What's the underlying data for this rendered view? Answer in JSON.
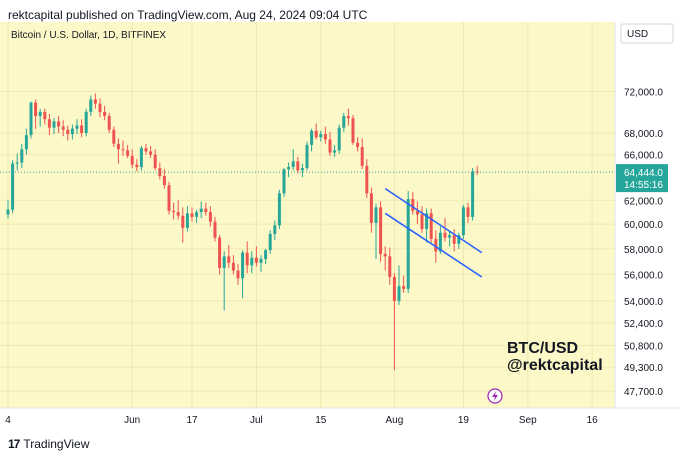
{
  "header": {
    "text": "rektcapital published on TradingView.com, Aug 24, 2024 09:04 UTC"
  },
  "footer": {
    "brand": "TradingView",
    "logo_text": "17"
  },
  "chart_data": {
    "type": "candlestick",
    "symbol_title": "Bitcoin / U.S. Dollar, 1D, BITFINEX",
    "currency_button": "USD",
    "watermark_line1": "BTC/USD",
    "watermark_line2": "@rektcapital",
    "background": "#fdf8c7",
    "up_color": "#26a69a",
    "down_color": "#ef5350",
    "channel_color": "#2962ff",
    "log_scale": true,
    "ylim": [
      47000,
      76000
    ],
    "y_ticks": [
      {
        "v": 72000,
        "label": "72,000.0"
      },
      {
        "v": 68000,
        "label": "68,000.0"
      },
      {
        "v": 66000,
        "label": "66,000.0"
      },
      {
        "v": 62000,
        "label": "62,000.0"
      },
      {
        "v": 60000,
        "label": "60,000.0"
      },
      {
        "v": 58000,
        "label": "58,000.0"
      },
      {
        "v": 56000,
        "label": "56,000.0"
      },
      {
        "v": 54000,
        "label": "54,000.0"
      },
      {
        "v": 52400,
        "label": "52,400.0"
      },
      {
        "v": 50800,
        "label": "50,800.0"
      },
      {
        "v": 49300,
        "label": "49,300.0"
      },
      {
        "v": 47700,
        "label": "47,700.0"
      }
    ],
    "x_ticks": [
      {
        "i": 0,
        "label": "4"
      },
      {
        "i": 27,
        "label": "Jun"
      },
      {
        "i": 40,
        "label": "17"
      },
      {
        "i": 54,
        "label": "Jul"
      },
      {
        "i": 68,
        "label": "15"
      },
      {
        "i": 84,
        "label": "Aug"
      },
      {
        "i": 99,
        "label": "19"
      },
      {
        "i": 113,
        "label": "Sep"
      },
      {
        "i": 127,
        "label": "16"
      }
    ],
    "last_price": {
      "value": 64444,
      "label": "64,444.0",
      "countdown": "14:55:16"
    },
    "channel_lines": [
      {
        "from": [
          82,
          63000
        ],
        "to": [
          103,
          57700
        ]
      },
      {
        "from": [
          82,
          60900
        ],
        "to": [
          103,
          55800
        ]
      }
    ],
    "candles": [
      {
        "o": 60800,
        "h": 62000,
        "l": 60500,
        "c": 61200
      },
      {
        "o": 61200,
        "h": 65500,
        "l": 60900,
        "c": 65200
      },
      {
        "o": 65200,
        "h": 66100,
        "l": 64600,
        "c": 65300
      },
      {
        "o": 65300,
        "h": 67000,
        "l": 64800,
        "c": 66500
      },
      {
        "o": 66500,
        "h": 68400,
        "l": 66000,
        "c": 67800
      },
      {
        "o": 67800,
        "h": 71000,
        "l": 67500,
        "c": 70900
      },
      {
        "o": 70900,
        "h": 71200,
        "l": 68400,
        "c": 69600
      },
      {
        "o": 69600,
        "h": 70300,
        "l": 68600,
        "c": 70000
      },
      {
        "o": 70000,
        "h": 70300,
        "l": 68800,
        "c": 69300
      },
      {
        "o": 69300,
        "h": 69800,
        "l": 67800,
        "c": 68500
      },
      {
        "o": 68500,
        "h": 69400,
        "l": 67900,
        "c": 69100
      },
      {
        "o": 69100,
        "h": 69600,
        "l": 68000,
        "c": 68600
      },
      {
        "o": 68600,
        "h": 69200,
        "l": 67700,
        "c": 68300
      },
      {
        "o": 68300,
        "h": 68700,
        "l": 67300,
        "c": 67900
      },
      {
        "o": 67900,
        "h": 68800,
        "l": 67400,
        "c": 68400
      },
      {
        "o": 68400,
        "h": 69300,
        "l": 67900,
        "c": 68700
      },
      {
        "o": 68700,
        "h": 69300,
        "l": 67600,
        "c": 68000
      },
      {
        "o": 68000,
        "h": 70300,
        "l": 67700,
        "c": 70000
      },
      {
        "o": 70000,
        "h": 71600,
        "l": 69600,
        "c": 71200
      },
      {
        "o": 71200,
        "h": 71800,
        "l": 70300,
        "c": 70800
      },
      {
        "o": 70800,
        "h": 71300,
        "l": 69500,
        "c": 70000
      },
      {
        "o": 70000,
        "h": 70600,
        "l": 69200,
        "c": 69600
      },
      {
        "o": 69600,
        "h": 69900,
        "l": 68000,
        "c": 68300
      },
      {
        "o": 68300,
        "h": 68600,
        "l": 66700,
        "c": 67000
      },
      {
        "o": 67000,
        "h": 67500,
        "l": 65200,
        "c": 66500
      },
      {
        "o": 66500,
        "h": 67300,
        "l": 65900,
        "c": 66400
      },
      {
        "o": 66400,
        "h": 66900,
        "l": 65700,
        "c": 65900
      },
      {
        "o": 65900,
        "h": 66500,
        "l": 64800,
        "c": 65100
      },
      {
        "o": 65100,
        "h": 65600,
        "l": 64500,
        "c": 64900
      },
      {
        "o": 64900,
        "h": 66800,
        "l": 64600,
        "c": 66600
      },
      {
        "o": 66600,
        "h": 67000,
        "l": 66000,
        "c": 66300
      },
      {
        "o": 66300,
        "h": 66800,
        "l": 65700,
        "c": 66000
      },
      {
        "o": 66000,
        "h": 66500,
        "l": 64600,
        "c": 64800
      },
      {
        "o": 64800,
        "h": 65300,
        "l": 63800,
        "c": 64100
      },
      {
        "o": 64100,
        "h": 64700,
        "l": 63000,
        "c": 63300
      },
      {
        "o": 63300,
        "h": 63600,
        "l": 60800,
        "c": 61100
      },
      {
        "o": 61100,
        "h": 61800,
        "l": 60400,
        "c": 61000
      },
      {
        "o": 61000,
        "h": 62000,
        "l": 60400,
        "c": 60700
      },
      {
        "o": 60700,
        "h": 61400,
        "l": 58500,
        "c": 59700
      },
      {
        "o": 59700,
        "h": 61500,
        "l": 59400,
        "c": 60900
      },
      {
        "o": 60900,
        "h": 61400,
        "l": 60200,
        "c": 60600
      },
      {
        "o": 60600,
        "h": 61200,
        "l": 60100,
        "c": 61000
      },
      {
        "o": 61000,
        "h": 61900,
        "l": 60500,
        "c": 61300
      },
      {
        "o": 61300,
        "h": 61800,
        "l": 60700,
        "c": 61000
      },
      {
        "o": 61000,
        "h": 61500,
        "l": 59800,
        "c": 60200
      },
      {
        "o": 60200,
        "h": 60600,
        "l": 58600,
        "c": 58900
      },
      {
        "o": 58900,
        "h": 59100,
        "l": 56000,
        "c": 56500
      },
      {
        "o": 56500,
        "h": 57800,
        "l": 53300,
        "c": 57400
      },
      {
        "o": 57400,
        "h": 58300,
        "l": 56500,
        "c": 56900
      },
      {
        "o": 56900,
        "h": 57500,
        "l": 56000,
        "c": 56300
      },
      {
        "o": 56300,
        "h": 56800,
        "l": 55200,
        "c": 55700
      },
      {
        "o": 55700,
        "h": 57900,
        "l": 54200,
        "c": 57700
      },
      {
        "o": 57700,
        "h": 58600,
        "l": 56100,
        "c": 56700
      },
      {
        "o": 56700,
        "h": 57800,
        "l": 56100,
        "c": 57300
      },
      {
        "o": 57300,
        "h": 58200,
        "l": 56600,
        "c": 56900
      },
      {
        "o": 56900,
        "h": 57500,
        "l": 56200,
        "c": 57200
      },
      {
        "o": 57200,
        "h": 58000,
        "l": 56800,
        "c": 57900
      },
      {
        "o": 57900,
        "h": 59500,
        "l": 57600,
        "c": 59200
      },
      {
        "o": 59200,
        "h": 60300,
        "l": 58700,
        "c": 59900
      },
      {
        "o": 59900,
        "h": 62900,
        "l": 59600,
        "c": 62600
      },
      {
        "o": 62600,
        "h": 64800,
        "l": 62300,
        "c": 64700
      },
      {
        "o": 64700,
        "h": 65300,
        "l": 64000,
        "c": 64900
      },
      {
        "o": 64900,
        "h": 66500,
        "l": 64600,
        "c": 65400
      },
      {
        "o": 65400,
        "h": 65800,
        "l": 64300,
        "c": 64600
      },
      {
        "o": 64600,
        "h": 65200,
        "l": 64000,
        "c": 64800
      },
      {
        "o": 64800,
        "h": 67200,
        "l": 64600,
        "c": 66900
      },
      {
        "o": 66900,
        "h": 68400,
        "l": 66300,
        "c": 68200
      },
      {
        "o": 68200,
        "h": 68900,
        "l": 67400,
        "c": 67600
      },
      {
        "o": 67600,
        "h": 68200,
        "l": 67200,
        "c": 67900
      },
      {
        "o": 67900,
        "h": 68600,
        "l": 67000,
        "c": 67400
      },
      {
        "o": 67400,
        "h": 68100,
        "l": 65900,
        "c": 66200
      },
      {
        "o": 66200,
        "h": 66900,
        "l": 65800,
        "c": 66400
      },
      {
        "o": 66400,
        "h": 68800,
        "l": 66100,
        "c": 68500
      },
      {
        "o": 68500,
        "h": 69900,
        "l": 68100,
        "c": 69600
      },
      {
        "o": 69600,
        "h": 70300,
        "l": 68700,
        "c": 69400
      },
      {
        "o": 69400,
        "h": 69700,
        "l": 66900,
        "c": 67100
      },
      {
        "o": 67100,
        "h": 67600,
        "l": 66300,
        "c": 66700
      },
      {
        "o": 66700,
        "h": 67500,
        "l": 64700,
        "c": 65000
      },
      {
        "o": 65000,
        "h": 65600,
        "l": 62200,
        "c": 62600
      },
      {
        "o": 62600,
        "h": 63100,
        "l": 59300,
        "c": 60100
      },
      {
        "o": 60100,
        "h": 61700,
        "l": 57200,
        "c": 61400
      },
      {
        "o": 61400,
        "h": 61900,
        "l": 57000,
        "c": 57600
      },
      {
        "o": 57600,
        "h": 58200,
        "l": 56300,
        "c": 57400
      },
      {
        "o": 57400,
        "h": 58100,
        "l": 55200,
        "c": 55800
      },
      {
        "o": 55800,
        "h": 56100,
        "l": 49100,
        "c": 54000
      },
      {
        "o": 54000,
        "h": 56700,
        "l": 53700,
        "c": 55100
      },
      {
        "o": 55100,
        "h": 55900,
        "l": 54600,
        "c": 54900
      },
      {
        "o": 54900,
        "h": 62800,
        "l": 54600,
        "c": 62100
      },
      {
        "o": 62100,
        "h": 62700,
        "l": 60800,
        "c": 61100
      },
      {
        "o": 61100,
        "h": 61900,
        "l": 60000,
        "c": 60800
      },
      {
        "o": 60800,
        "h": 61500,
        "l": 59300,
        "c": 59600
      },
      {
        "o": 59600,
        "h": 61300,
        "l": 58500,
        "c": 60900
      },
      {
        "o": 60900,
        "h": 61300,
        "l": 58500,
        "c": 58800
      },
      {
        "o": 58800,
        "h": 59500,
        "l": 56900,
        "c": 57800
      },
      {
        "o": 57800,
        "h": 59800,
        "l": 57600,
        "c": 59300
      },
      {
        "o": 59300,
        "h": 60500,
        "l": 58600,
        "c": 58900
      },
      {
        "o": 58900,
        "h": 59500,
        "l": 58200,
        "c": 59100
      },
      {
        "o": 59100,
        "h": 59600,
        "l": 57800,
        "c": 58400
      },
      {
        "o": 58400,
        "h": 59300,
        "l": 58000,
        "c": 59100
      },
      {
        "o": 59100,
        "h": 61600,
        "l": 58800,
        "c": 61400
      },
      {
        "o": 61400,
        "h": 61800,
        "l": 60100,
        "c": 60600
      },
      {
        "o": 60600,
        "h": 64800,
        "l": 60300,
        "c": 64500
      },
      {
        "o": 64500,
        "h": 65000,
        "l": 64200,
        "c": 64444
      }
    ]
  }
}
